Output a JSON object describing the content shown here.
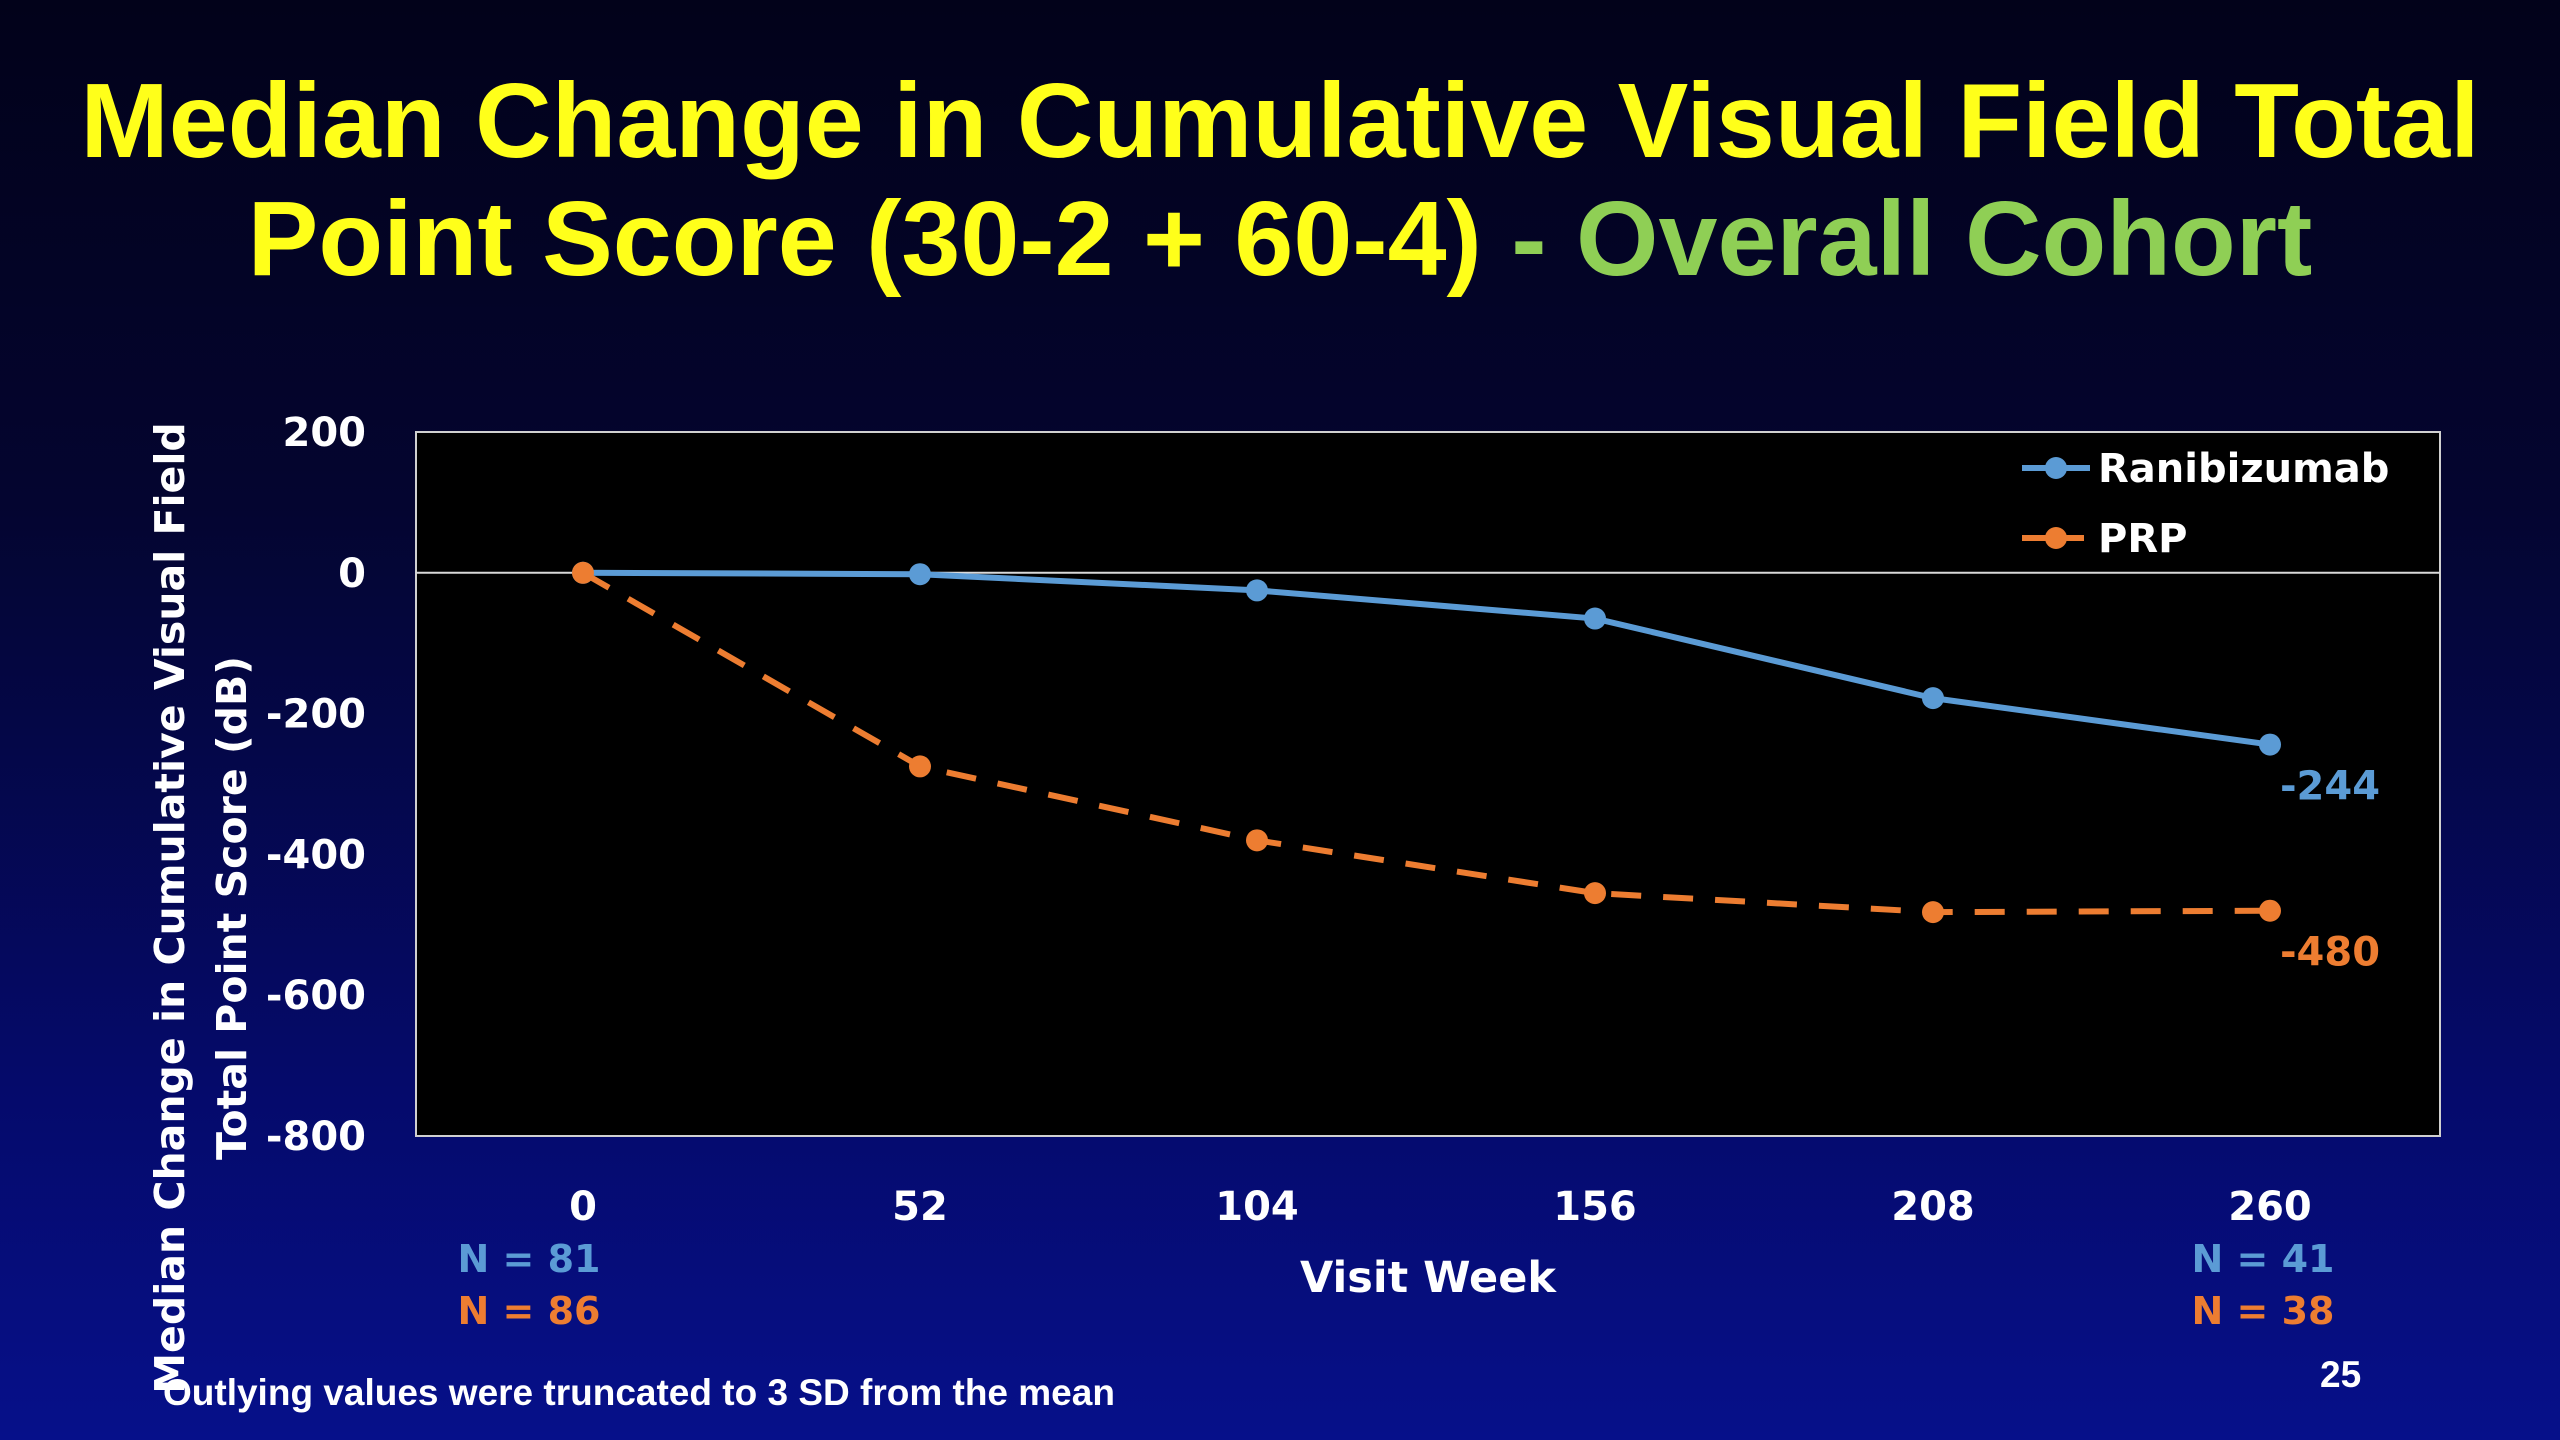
{
  "slide": {
    "title_main": "Median Change in Cumulative Visual Field Total Point Score (30-2 + 60-4)",
    "title_suffix": " - Overall Cohort",
    "footnote": "Outlying values were truncated to 3 SD from the mean",
    "page_number": "25",
    "colors": {
      "title": "#ffff1a",
      "title_suffix": "#8fcf55"
    }
  },
  "chart_data": {
    "type": "line",
    "xlabel": "Visit Week",
    "ylabel_lines": [
      "Median Change in Cumulative Visual Field",
      "Total Point Score (dB)"
    ],
    "x": [
      0,
      52,
      104,
      156,
      208,
      260
    ],
    "ylim": [
      -800,
      200
    ],
    "yticks": [
      200,
      0,
      -200,
      -400,
      -600,
      -800
    ],
    "grid": false,
    "zero_line": true,
    "legend_position": "top-right",
    "series": [
      {
        "name": "Ranibizumab",
        "values": [
          0,
          -2,
          -25,
          -65,
          -178,
          -244
        ],
        "color": "#5b9bd5",
        "style": "solid",
        "end_label": "-244"
      },
      {
        "name": "PRP",
        "values": [
          0,
          -275,
          -380,
          -455,
          -482,
          -480
        ],
        "color": "#ed7d31",
        "style": "dashed",
        "end_label": "-480"
      }
    ],
    "sample_sizes": [
      {
        "x": 0,
        "rows": [
          {
            "text": "N = 81",
            "color": "#5b9bd5"
          },
          {
            "text": "N = 86",
            "color": "#ed7d31"
          }
        ]
      },
      {
        "x": 260,
        "rows": [
          {
            "text": "N = 41",
            "color": "#5b9bd5"
          },
          {
            "text": "N = 38",
            "color": "#ed7d31"
          }
        ]
      }
    ]
  }
}
